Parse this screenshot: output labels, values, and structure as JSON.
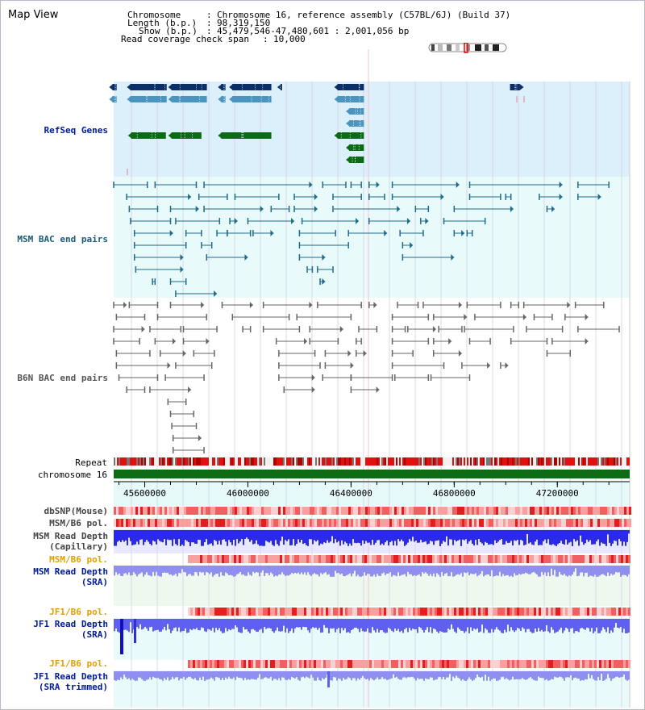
{
  "view": {
    "title": "Map View",
    "info": {
      "chromosome_key": "Chromosome",
      "chromosome_val": "Chromosome 16, reference assembly (C57BL/6J) (Build 37)",
      "length_key": "Length (b.p.)",
      "length_val": "98,319,150",
      "show_key": "Show (b.p.)",
      "show_val": "45,479,546-47,480,601 : 2,001,056 bp",
      "coverage_key": "Read coverage check span",
      "coverage_val": "10,000"
    }
  },
  "colors": {
    "refseq_band": "#dbf0fa",
    "bac_band": "#e8fafa",
    "gene_dark": "#0b2e66",
    "gene_mid": "#4b94c0",
    "gene_green": "#0b6b14",
    "msm_bac": "#1f6b8a",
    "b6n_bac": "#666666",
    "chromosome": "#0d6b14",
    "snp_track": "#f08080",
    "read_depth": "#2a2ae8",
    "read_depth_light": "#8f8ff0",
    "grid": "#d8d8e8",
    "label_blue": "#001a99",
    "label_teal": "#1a5a78",
    "label_orange": "#e0a000"
  },
  "tracks": {
    "refseq": "RefSeq Genes",
    "msm_bac": "MSM BAC end pairs",
    "b6n_bac": "B6N BAC end pairs",
    "repeat": "Repeat",
    "chromosome": "chromosome 16",
    "dbsnp": "dbSNP(Mouse)",
    "msm_b6_pol": "MSM/B6 pol.",
    "msm_read_depth_cap_l1": "MSM Read Depth",
    "msm_read_depth_cap_l2": "(Capillary)",
    "msm_b6_pol2": "MSM/B6 pol.",
    "msm_read_depth_sra_l1": "MSM Read Depth",
    "msm_read_depth_sra_l2": "(SRA)",
    "jf1_b6_pol": "JF1/B6 pol.",
    "jf1_read_depth_l1": "JF1 Read Depth",
    "jf1_read_depth_l2": "(SRA)",
    "jf1_b6_pol2": "JF1/B6 pol.",
    "jf1_read_depth_trim_l1": "JF1 Read Depth",
    "jf1_read_depth_trim_l2": "(SRA trimmed)"
  },
  "axis": {
    "start": 45479546,
    "end": 47480601,
    "ticks": [
      {
        "value": 45600000,
        "label": "45600000"
      },
      {
        "value": 46000000,
        "label": "46000000"
      },
      {
        "value": 46400000,
        "label": "46400000"
      },
      {
        "value": 46800000,
        "label": "46800000"
      },
      {
        "value": 47200000,
        "label": "47200000"
      }
    ]
  },
  "refseq_genes": [
    {
      "row": 0,
      "start": 45462000,
      "end": 45491000,
      "color": "gene_dark",
      "strand": "-"
    },
    {
      "row": 0,
      "start": 45531000,
      "end": 45685000,
      "color": "gene_dark",
      "strand": "-"
    },
    {
      "row": 0,
      "start": 45691000,
      "end": 45841000,
      "color": "gene_dark",
      "strand": "-"
    },
    {
      "row": 0,
      "start": 45884000,
      "end": 45913000,
      "color": "gene_dark",
      "strand": "-"
    },
    {
      "row": 0,
      "start": 45927000,
      "end": 46091000,
      "color": "gene_dark",
      "strand": "-"
    },
    {
      "row": 0,
      "start": 46114000,
      "end": 46127000,
      "color": "gene_dark",
      "strand": "-"
    },
    {
      "row": 0,
      "start": 46335000,
      "end": 46450000,
      "color": "gene_dark",
      "strand": "-"
    },
    {
      "row": 0,
      "start": 47004000,
      "end": 47054000,
      "color": "gene_dark",
      "strand": "+"
    },
    {
      "row": 1,
      "start": 45462000,
      "end": 45491000,
      "color": "gene_mid",
      "strand": "-"
    },
    {
      "row": 1,
      "start": 45531000,
      "end": 45685000,
      "color": "gene_mid",
      "strand": "-"
    },
    {
      "row": 1,
      "start": 45691000,
      "end": 45841000,
      "color": "gene_mid",
      "strand": "-"
    },
    {
      "row": 1,
      "start": 45884000,
      "end": 45913000,
      "color": "gene_mid",
      "strand": "-"
    },
    {
      "row": 1,
      "start": 45927000,
      "end": 46091000,
      "color": "gene_mid",
      "strand": "-"
    },
    {
      "row": 1,
      "start": 46335000,
      "end": 46450000,
      "color": "gene_mid",
      "strand": "-"
    },
    {
      "row": 2,
      "start": 46380000,
      "end": 46450000,
      "color": "gene_mid",
      "strand": "-"
    },
    {
      "row": 3,
      "start": 46380000,
      "end": 46450000,
      "color": "gene_mid",
      "strand": "-"
    },
    {
      "row": 4,
      "start": 45535000,
      "end": 45682000,
      "color": "gene_green",
      "strand": "-"
    },
    {
      "row": 4,
      "start": 45691000,
      "end": 45820000,
      "color": "gene_green",
      "strand": "-"
    },
    {
      "row": 4,
      "start": 45884000,
      "end": 46091000,
      "color": "gene_green",
      "strand": "-"
    },
    {
      "row": 4,
      "start": 46335000,
      "end": 46450000,
      "color": "gene_green",
      "strand": "-"
    },
    {
      "row": 5,
      "start": 46380000,
      "end": 46450000,
      "color": "gene_green",
      "strand": "-"
    },
    {
      "row": 6,
      "start": 46380000,
      "end": 46450000,
      "color": "gene_green",
      "strand": "-"
    }
  ],
  "msm_pairs": [
    {
      "row": 0,
      "start": 45479546,
      "end": 45610000
    },
    {
      "row": 0,
      "start": 45640000,
      "end": 45800000
    },
    {
      "row": 0,
      "start": 45830000,
      "end": 46250000
    },
    {
      "row": 0,
      "start": 46290000,
      "end": 46380000
    },
    {
      "row": 0,
      "start": 46400000,
      "end": 46440000
    },
    {
      "row": 0,
      "start": 46470000,
      "end": 46510000
    },
    {
      "row": 0,
      "start": 46560000,
      "end": 46820000
    },
    {
      "row": 0,
      "start": 46860000,
      "end": 47220000
    },
    {
      "row": 0,
      "start": 47280000,
      "end": 47400000
    },
    {
      "row": 1,
      "start": 45530000,
      "end": 45780000
    },
    {
      "row": 1,
      "start": 45810000,
      "end": 45920000
    },
    {
      "row": 1,
      "start": 45950000,
      "end": 46120000
    },
    {
      "row": 1,
      "start": 46180000,
      "end": 46270000
    },
    {
      "row": 1,
      "start": 46330000,
      "end": 46440000
    },
    {
      "row": 1,
      "start": 46470000,
      "end": 46530000
    },
    {
      "row": 1,
      "start": 46560000,
      "end": 46760000
    },
    {
      "row": 1,
      "start": 46860000,
      "end": 46980000
    },
    {
      "row": 1,
      "start": 47000000,
      "end": 47020000
    },
    {
      "row": 1,
      "start": 47130000,
      "end": 47220000
    },
    {
      "row": 1,
      "start": 47280000,
      "end": 47370000
    },
    {
      "row": 2,
      "start": 45540000,
      "end": 45650000
    },
    {
      "row": 2,
      "start": 45700000,
      "end": 45810000
    },
    {
      "row": 2,
      "start": 45830000,
      "end": 46060000
    },
    {
      "row": 2,
      "start": 46090000,
      "end": 46160000
    },
    {
      "row": 2,
      "start": 46180000,
      "end": 46270000
    },
    {
      "row": 2,
      "start": 46330000,
      "end": 46590000
    },
    {
      "row": 2,
      "start": 46650000,
      "end": 46700000
    },
    {
      "row": 2,
      "start": 46800000,
      "end": 47030000
    },
    {
      "row": 2,
      "start": 47160000,
      "end": 47190000
    },
    {
      "row": 3,
      "start": 45545000,
      "end": 45700000
    },
    {
      "row": 3,
      "start": 45720000,
      "end": 45890000
    },
    {
      "row": 3,
      "start": 45930000,
      "end": 45960000
    },
    {
      "row": 3,
      "start": 46000000,
      "end": 46180000
    },
    {
      "row": 3,
      "start": 46210000,
      "end": 46430000
    },
    {
      "row": 3,
      "start": 46470000,
      "end": 46630000
    },
    {
      "row": 3,
      "start": 46670000,
      "end": 46700000
    },
    {
      "row": 3,
      "start": 46760000,
      "end": 46920000
    },
    {
      "row": 4,
      "start": 45560000,
      "end": 45710000
    },
    {
      "row": 4,
      "start": 45760000,
      "end": 45820000
    },
    {
      "row": 4,
      "start": 45880000,
      "end": 45920000
    },
    {
      "row": 4,
      "start": 45920000,
      "end": 46010000
    },
    {
      "row": 4,
      "start": 46020000,
      "end": 46100000
    },
    {
      "row": 4,
      "start": 46200000,
      "end": 46340000
    },
    {
      "row": 4,
      "start": 46390000,
      "end": 46540000
    },
    {
      "row": 4,
      "start": 46590000,
      "end": 46680000
    },
    {
      "row": 4,
      "start": 46800000,
      "end": 46840000
    },
    {
      "row": 4,
      "start": 46850000,
      "end": 46870000
    },
    {
      "row": 5,
      "start": 45560000,
      "end": 45760000
    },
    {
      "row": 5,
      "start": 45820000,
      "end": 45860000
    },
    {
      "row": 5,
      "start": 46200000,
      "end": 46390000
    },
    {
      "row": 5,
      "start": 46600000,
      "end": 46640000
    },
    {
      "row": 6,
      "start": 45560000,
      "end": 45750000
    },
    {
      "row": 6,
      "start": 45840000,
      "end": 46000000
    },
    {
      "row": 6,
      "start": 46200000,
      "end": 46300000
    },
    {
      "row": 6,
      "start": 46600000,
      "end": 46800000
    },
    {
      "row": 7,
      "start": 45565000,
      "end": 45750000
    },
    {
      "row": 7,
      "start": 46230000,
      "end": 46250000
    },
    {
      "row": 7,
      "start": 46270000,
      "end": 46330000
    },
    {
      "row": 8,
      "start": 45630000,
      "end": 45640000
    },
    {
      "row": 8,
      "start": 45700000,
      "end": 45760000
    },
    {
      "row": 8,
      "start": 46280000,
      "end": 46300000
    },
    {
      "row": 9,
      "start": 45720000,
      "end": 45880000
    }
  ],
  "b6n_pairs": [
    {
      "row": 0,
      "start": 45479546,
      "end": 45530000
    },
    {
      "row": 0,
      "start": 45540000,
      "end": 45650000
    },
    {
      "row": 0,
      "start": 45700000,
      "end": 45830000
    },
    {
      "row": 0,
      "start": 45900000,
      "end": 46020000
    },
    {
      "row": 0,
      "start": 46060000,
      "end": 46250000
    },
    {
      "row": 0,
      "start": 46270000,
      "end": 46440000
    },
    {
      "row": 0,
      "start": 46470000,
      "end": 46500000
    },
    {
      "row": 0,
      "start": 46580000,
      "end": 46660000
    },
    {
      "row": 0,
      "start": 46680000,
      "end": 46830000
    },
    {
      "row": 0,
      "start": 46850000,
      "end": 46980000
    },
    {
      "row": 0,
      "start": 47020000,
      "end": 47050000
    },
    {
      "row": 0,
      "start": 47070000,
      "end": 47250000
    },
    {
      "row": 0,
      "start": 47270000,
      "end": 47380000
    },
    {
      "row": 1,
      "start": 45490000,
      "end": 45600000
    },
    {
      "row": 1,
      "start": 45650000,
      "end": 45840000
    },
    {
      "row": 1,
      "start": 45940000,
      "end": 46160000
    },
    {
      "row": 1,
      "start": 46190000,
      "end": 46400000
    },
    {
      "row": 1,
      "start": 46560000,
      "end": 46700000
    },
    {
      "row": 1,
      "start": 46720000,
      "end": 46850000
    },
    {
      "row": 1,
      "start": 46880000,
      "end": 47080000
    },
    {
      "row": 1,
      "start": 47110000,
      "end": 47180000
    },
    {
      "row": 1,
      "start": 47230000,
      "end": 47320000
    },
    {
      "row": 2,
      "start": 45479546,
      "end": 45600000
    },
    {
      "row": 2,
      "start": 45620000,
      "end": 45740000
    },
    {
      "row": 2,
      "start": 45750000,
      "end": 45880000
    },
    {
      "row": 2,
      "start": 45980000,
      "end": 46010000
    },
    {
      "row": 2,
      "start": 46060000,
      "end": 46200000
    },
    {
      "row": 2,
      "start": 46240000,
      "end": 46370000
    },
    {
      "row": 2,
      "start": 46430000,
      "end": 46500000
    },
    {
      "row": 2,
      "start": 46560000,
      "end": 46610000
    },
    {
      "row": 2,
      "start": 46620000,
      "end": 46730000
    },
    {
      "row": 2,
      "start": 46740000,
      "end": 46830000
    },
    {
      "row": 2,
      "start": 46840000,
      "end": 47030000
    },
    {
      "row": 2,
      "start": 47080000,
      "end": 47220000
    },
    {
      "row": 2,
      "start": 47280000,
      "end": 47440000
    },
    {
      "row": 3,
      "start": 45479546,
      "end": 45580000
    },
    {
      "row": 3,
      "start": 45640000,
      "end": 45720000
    },
    {
      "row": 3,
      "start": 45750000,
      "end": 45850000
    },
    {
      "row": 3,
      "start": 46110000,
      "end": 46230000
    },
    {
      "row": 3,
      "start": 46240000,
      "end": 46350000
    },
    {
      "row": 3,
      "start": 46420000,
      "end": 46440000
    },
    {
      "row": 3,
      "start": 46560000,
      "end": 46700000
    },
    {
      "row": 3,
      "start": 46720000,
      "end": 46790000
    },
    {
      "row": 3,
      "start": 46860000,
      "end": 46940000
    },
    {
      "row": 3,
      "start": 47020000,
      "end": 47160000
    },
    {
      "row": 3,
      "start": 47180000,
      "end": 47320000
    },
    {
      "row": 4,
      "start": 45490000,
      "end": 45620000
    },
    {
      "row": 4,
      "start": 45660000,
      "end": 45760000
    },
    {
      "row": 4,
      "start": 45790000,
      "end": 45870000
    },
    {
      "row": 4,
      "start": 46120000,
      "end": 46260000
    },
    {
      "row": 4,
      "start": 46300000,
      "end": 46400000
    },
    {
      "row": 4,
      "start": 46420000,
      "end": 46460000
    },
    {
      "row": 4,
      "start": 46560000,
      "end": 46640000
    },
    {
      "row": 4,
      "start": 46720000,
      "end": 46830000
    },
    {
      "row": 4,
      "start": 47160000,
      "end": 47250000
    },
    {
      "row": 5,
      "start": 45490000,
      "end": 45700000
    },
    {
      "row": 5,
      "start": 45720000,
      "end": 45860000
    },
    {
      "row": 5,
      "start": 46120000,
      "end": 46280000
    },
    {
      "row": 5,
      "start": 46300000,
      "end": 46410000
    },
    {
      "row": 5,
      "start": 46560000,
      "end": 46760000
    },
    {
      "row": 5,
      "start": 46830000,
      "end": 46940000
    },
    {
      "row": 5,
      "start": 46980000,
      "end": 47010000
    },
    {
      "row": 6,
      "start": 45500000,
      "end": 45650000
    },
    {
      "row": 6,
      "start": 45680000,
      "end": 45830000
    },
    {
      "row": 6,
      "start": 46120000,
      "end": 46260000
    },
    {
      "row": 6,
      "start": 46290000,
      "end": 46400000
    },
    {
      "row": 6,
      "start": 46400000,
      "end": 46560000
    },
    {
      "row": 6,
      "start": 46570000,
      "end": 46700000
    },
    {
      "row": 6,
      "start": 46710000,
      "end": 46860000
    },
    {
      "row": 7,
      "start": 45530000,
      "end": 45600000
    },
    {
      "row": 7,
      "start": 45620000,
      "end": 45780000
    },
    {
      "row": 7,
      "start": 46140000,
      "end": 46260000
    },
    {
      "row": 7,
      "start": 46400000,
      "end": 46510000
    },
    {
      "row": 8,
      "start": 45690000,
      "end": 45760000
    },
    {
      "row": 9,
      "start": 45700000,
      "end": 45790000
    },
    {
      "row": 10,
      "start": 45705000,
      "end": 45800000
    },
    {
      "row": 11,
      "start": 45710000,
      "end": 45820000
    },
    {
      "row": 12,
      "start": 45710000,
      "end": 45830000
    },
    {
      "row": 13,
      "start": 45710000,
      "end": 45790000
    }
  ]
}
